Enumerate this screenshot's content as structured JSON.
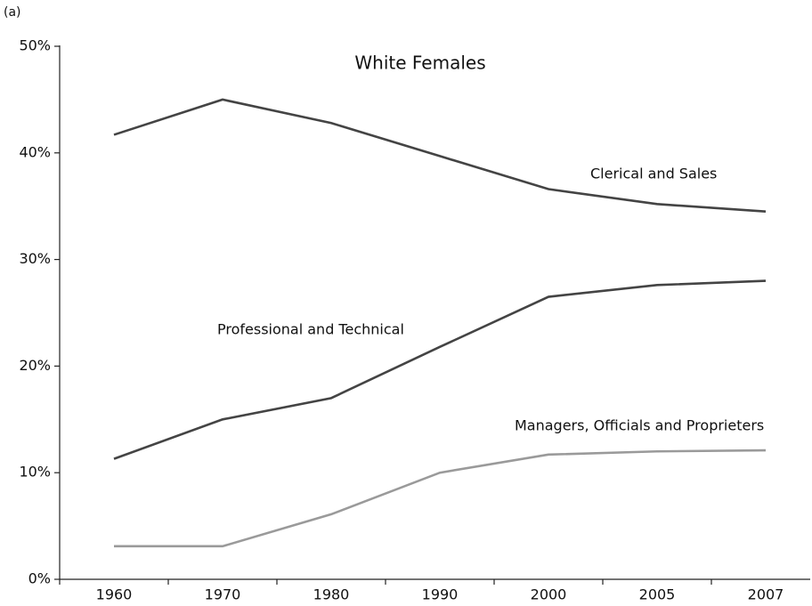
{
  "chart_data": {
    "type": "line",
    "panel_label": "(a)",
    "title": "White Females",
    "categories": [
      "1960",
      "1970",
      "1980",
      "1990",
      "2000",
      "2005",
      "2007"
    ],
    "series": [
      {
        "name": "Clerical and Sales",
        "color": "#444444",
        "values": [
          41.7,
          45,
          42.8,
          39.7,
          36.6,
          35.2,
          34.5
        ]
      },
      {
        "name": "Professional and Technical",
        "color": "#444444",
        "values": [
          11.3,
          15,
          17,
          21.8,
          26.5,
          27.6,
          28
        ]
      },
      {
        "name": "Managers, Officials and Proprieters",
        "color": "#9a9a9a",
        "values": [
          3.1,
          3.1,
          6.1,
          10,
          11.7,
          12,
          12.1
        ]
      }
    ],
    "ylim": [
      0,
      50
    ],
    "yticks": [
      {
        "value": 0,
        "label": "0%"
      },
      {
        "value": 10,
        "label": "10%"
      },
      {
        "value": 20,
        "label": "20%"
      },
      {
        "value": 30,
        "label": "30%"
      },
      {
        "value": 40,
        "label": "40%"
      },
      {
        "value": 50,
        "label": "50%"
      }
    ]
  }
}
